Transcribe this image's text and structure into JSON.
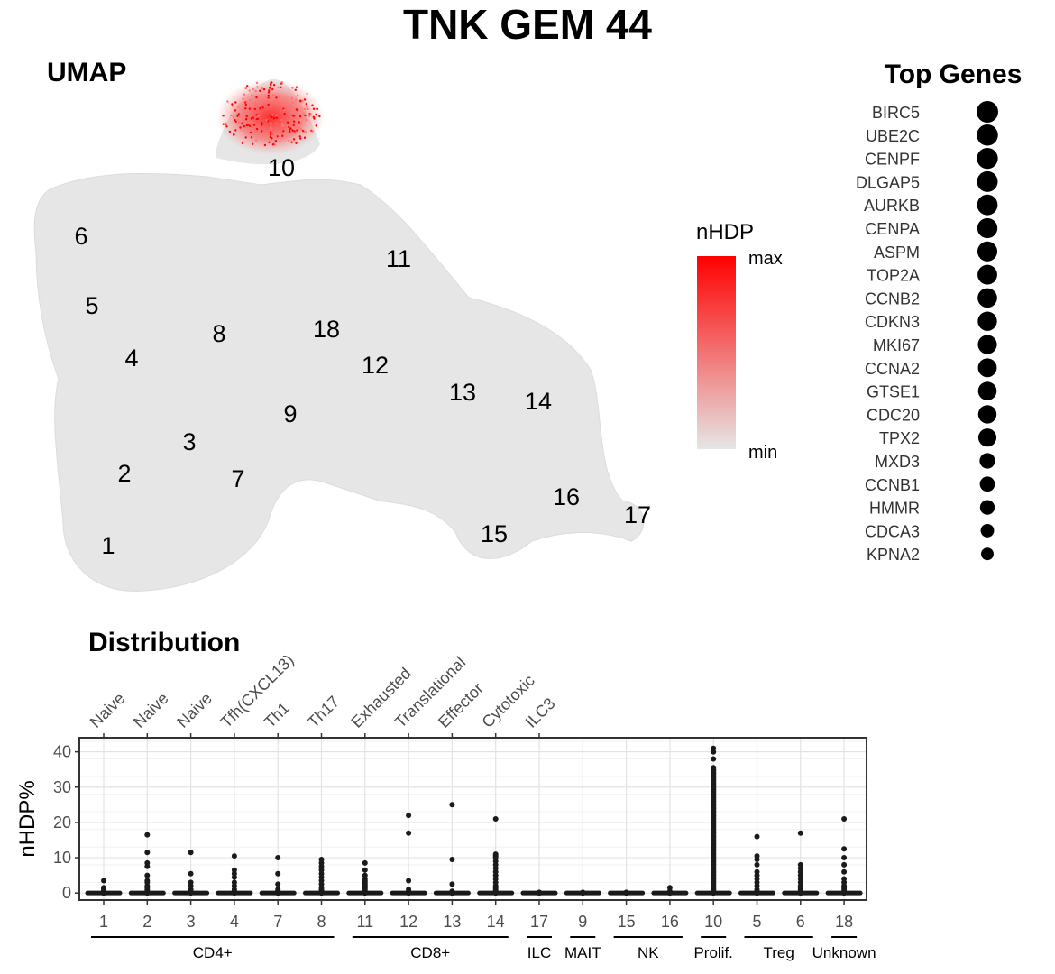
{
  "title": "TNK GEM 44",
  "umap": {
    "heading": "UMAP",
    "cluster_labels": [
      "10",
      "6",
      "11",
      "5",
      "8",
      "18",
      "4",
      "12",
      "13",
      "14",
      "9",
      "3",
      "2",
      "7",
      "16",
      "17",
      "15",
      "1"
    ],
    "high_cluster": "10"
  },
  "legend": {
    "title": "nHDP",
    "max_label": "max",
    "min_label": "min",
    "color_high": "#ff0000",
    "color_low": "#e6e6e6"
  },
  "top_genes": {
    "heading": "Top Genes",
    "genes": [
      "BIRC5",
      "UBE2C",
      "CENPF",
      "DLGAP5",
      "AURKB",
      "CENPA",
      "ASPM",
      "TOP2A",
      "CCNB2",
      "CDKN3",
      "MKI67",
      "CCNA2",
      "GTSE1",
      "CDC20",
      "TPX2",
      "MXD3",
      "CCNB1",
      "HMMR",
      "CDCA3",
      "KPNA2"
    ],
    "relative_weight": [
      1.0,
      0.98,
      0.97,
      0.96,
      0.95,
      0.93,
      0.92,
      0.91,
      0.9,
      0.89,
      0.88,
      0.87,
      0.86,
      0.85,
      0.84,
      0.72,
      0.7,
      0.68,
      0.62,
      0.58
    ]
  },
  "chart_data": {
    "type": "strip",
    "title": "Distribution",
    "ylabel": "nHDP%",
    "ylim": [
      -2,
      44
    ],
    "yticks": [
      0,
      10,
      20,
      30,
      40
    ],
    "grid": true,
    "categories": [
      "1",
      "2",
      "3",
      "4",
      "7",
      "8",
      "11",
      "12",
      "13",
      "14",
      "17",
      "9",
      "15",
      "16",
      "10",
      "5",
      "6",
      "18"
    ],
    "top_labels": [
      "Naive",
      "Naive",
      "Naive",
      "Tfh(CXCL13)",
      "Th1",
      "Th17",
      "Exhausted",
      "Translational",
      "Effector",
      "Cytotoxic",
      "ILC3",
      "",
      "",
      "",
      "",
      "",
      "",
      ""
    ],
    "groups": [
      {
        "label": "CD4+",
        "from": 0,
        "to": 5
      },
      {
        "label": "CD8+",
        "from": 6,
        "to": 9
      },
      {
        "label": "ILC",
        "from": 10,
        "to": 10
      },
      {
        "label": "MAIT",
        "from": 11,
        "to": 11
      },
      {
        "label": "NK",
        "from": 12,
        "to": 13
      },
      {
        "label": "Prolif.",
        "from": 14,
        "to": 14
      },
      {
        "label": "Treg",
        "from": 15,
        "to": 16
      },
      {
        "label": "Unknown",
        "from": 17,
        "to": 17
      }
    ],
    "points": [
      [
        0,
        0.3,
        0.6,
        1.0,
        1.5,
        3.5
      ],
      [
        0,
        0.5,
        1.0,
        1.5,
        2.0,
        3.0,
        3.5,
        5.0,
        7.5,
        8.5,
        11.5,
        16.5
      ],
      [
        0,
        0.5,
        1.0,
        2.0,
        3.0,
        5.5,
        11.5
      ],
      [
        0,
        0.5,
        1.0,
        2.0,
        3.0,
        4.5,
        5.5,
        6.5,
        10.5
      ],
      [
        0,
        0.5,
        1.0,
        2.5,
        5.5,
        10.0
      ],
      [
        0,
        0.5,
        1.0,
        1.5,
        2.5,
        3.5,
        4.5,
        5.5,
        6.5,
        7.5,
        8.5,
        9.5
      ],
      [
        0,
        0.5,
        1.0,
        1.5,
        2.0,
        2.5,
        3.0,
        3.5,
        4.0,
        5.0,
        6.5,
        8.5
      ],
      [
        0,
        0.5,
        1.0,
        3.5,
        17.0,
        22.0
      ],
      [
        0,
        0.5,
        2.5,
        9.5,
        25.0
      ],
      [
        0,
        0.5,
        1.0,
        1.5,
        2.0,
        3.0,
        4.0,
        5.0,
        6.0,
        7.0,
        8.0,
        9.0,
        10.0,
        10.5,
        11.0,
        21.0
      ],
      [
        0,
        0.2
      ],
      [
        0,
        0.2
      ],
      [
        0,
        0.2
      ],
      [
        0,
        0.5,
        1.5
      ],
      [
        0,
        1,
        2,
        3,
        4,
        5,
        6,
        7,
        8,
        9,
        10,
        11,
        12,
        13,
        14,
        15,
        16,
        17,
        18,
        19,
        20,
        21,
        22,
        23,
        24,
        25,
        26,
        27,
        28,
        29,
        30,
        31,
        32,
        33,
        34,
        35,
        35.5,
        38.0,
        40.0,
        41.0
      ],
      [
        0,
        0.5,
        1.0,
        2.0,
        3.0,
        4.0,
        5.0,
        6.0,
        8.0,
        9.5,
        10.5,
        16.0
      ],
      [
        0,
        0.5,
        1.0,
        1.5,
        2.0,
        3.0,
        4.0,
        5.0,
        6.0,
        7.0,
        8.0,
        17.0
      ],
      [
        0,
        0.5,
        1.0,
        1.5,
        2.0,
        3.0,
        4.0,
        6.0,
        8.0,
        10.0,
        12.5,
        21.0
      ]
    ]
  }
}
